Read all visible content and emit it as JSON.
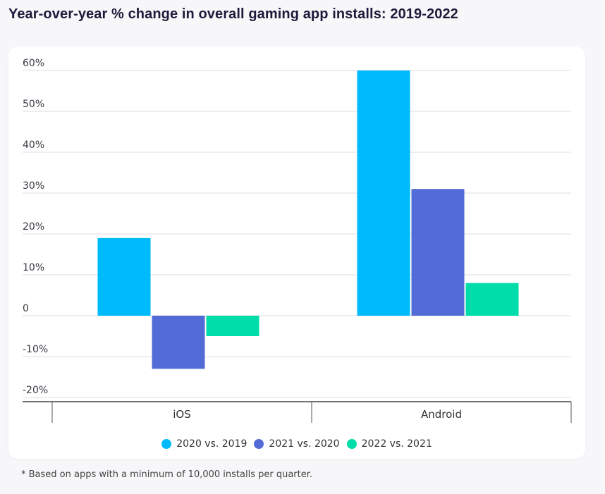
{
  "title": "Year-over-year % change in overall gaming app installs: 2019-2022",
  "footnote": "* Based on apps with a minimum of 10,000 installs per quarter.",
  "chart_data": {
    "type": "bar",
    "title": "Year-over-year % change in overall gaming app installs: 2019-2022",
    "xlabel": "",
    "ylabel": "",
    "categories": [
      "iOS",
      "Android"
    ],
    "series": [
      {
        "name": "2020 vs. 2019",
        "color": "#00bbfb",
        "values": [
          19,
          60
        ]
      },
      {
        "name": "2021 vs. 2020",
        "color": "#536bd6",
        "values": [
          -13,
          31
        ]
      },
      {
        "name": "2022 vs. 2021",
        "color": "#00dcaa",
        "values": [
          -5,
          8
        ]
      }
    ],
    "ylim": [
      -20,
      60
    ],
    "yticks": [
      60,
      50,
      40,
      30,
      20,
      10,
      0,
      -10,
      -20
    ],
    "ytick_labels": [
      "60%",
      "50%",
      "40%",
      "30%",
      "20%",
      "10%",
      "0",
      "-10%",
      "-20%"
    ],
    "grid": true,
    "legend": "bottom-center"
  }
}
